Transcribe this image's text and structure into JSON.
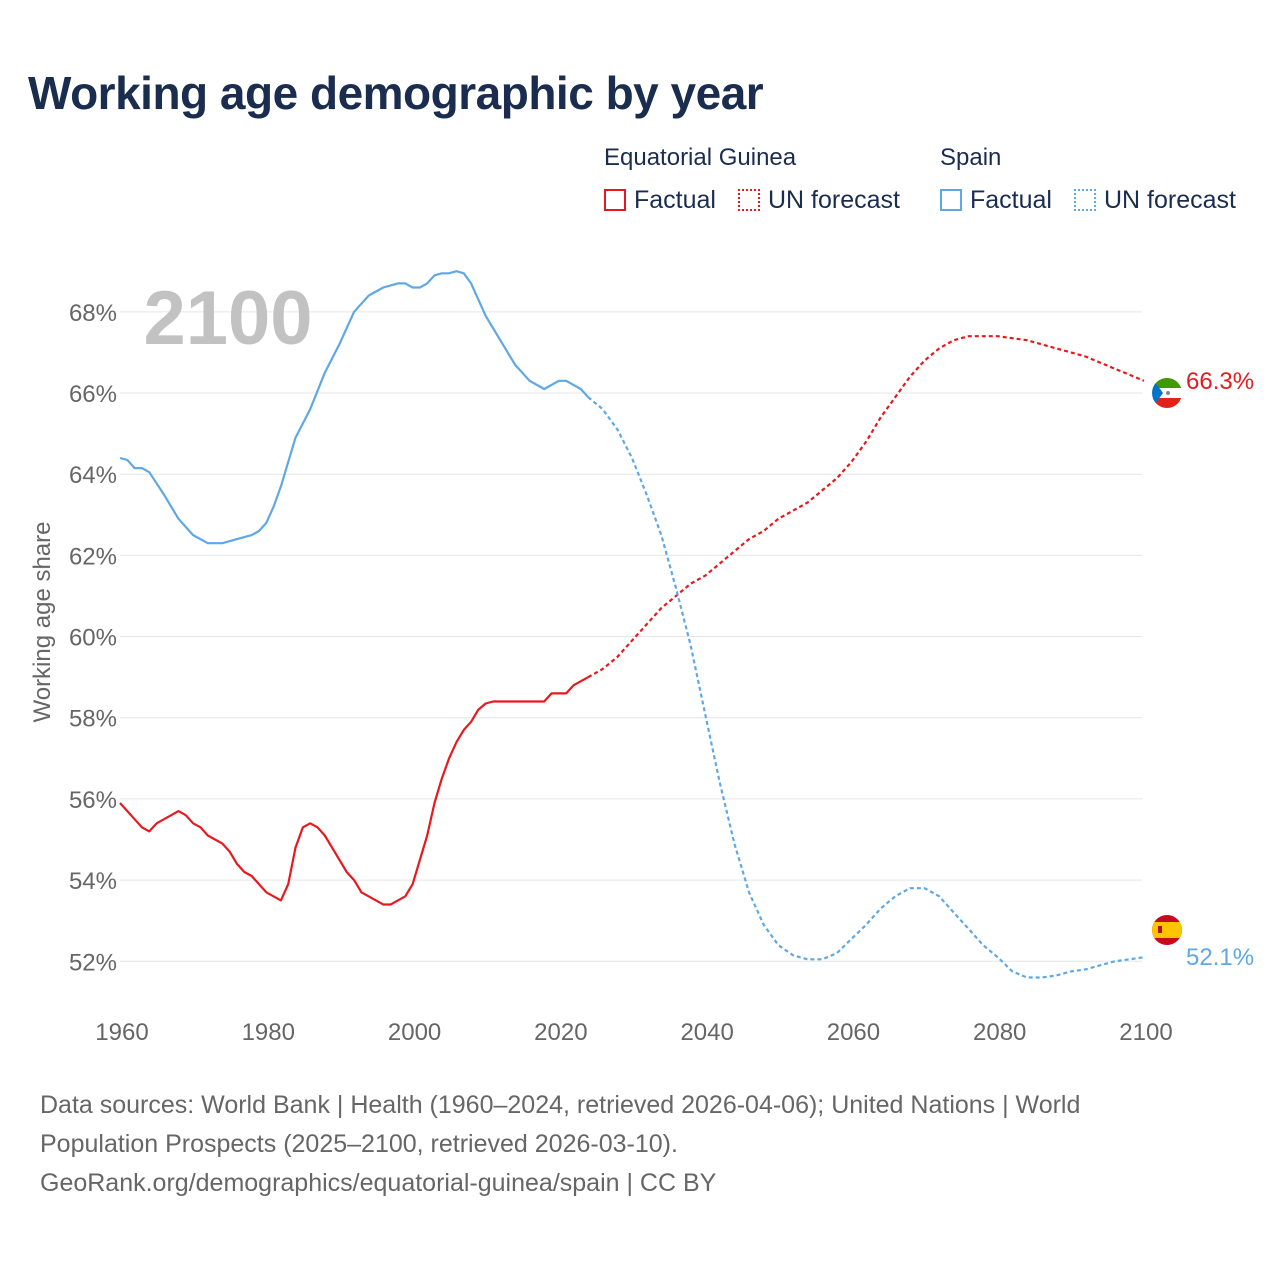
{
  "title": "Working age demographic by year",
  "legend": {
    "groups": [
      {
        "country": "Equatorial Guinea",
        "color": "#e8191e",
        "factual_label": "Factual",
        "forecast_label": "UN forecast"
      },
      {
        "country": "Spain",
        "color": "#5fa8e6",
        "factual_label": "Factual",
        "forecast_label": "UN forecast"
      }
    ]
  },
  "chart_data": {
    "type": "line",
    "title": "Working age demographic by year",
    "xlabel": "",
    "ylabel": "Working age share",
    "xlim": [
      1960,
      2100
    ],
    "ylim": [
      50.8,
      69.4
    ],
    "x_ticks": [
      "1960",
      "1980",
      "2000",
      "2020",
      "2040",
      "2060",
      "2080",
      "2100"
    ],
    "y_ticks": [
      {
        "value": 52,
        "label": "52%"
      },
      {
        "value": 54,
        "label": "54%"
      },
      {
        "value": 56,
        "label": "56%"
      },
      {
        "value": 58,
        "label": "58%"
      },
      {
        "value": 60,
        "label": "60%"
      },
      {
        "value": 62,
        "label": "62%"
      },
      {
        "value": 64,
        "label": "64%"
      },
      {
        "value": 66,
        "label": "66%"
      },
      {
        "value": 68,
        "label": "68%"
      }
    ],
    "year_watermark": "2100",
    "series": [
      {
        "name": "Equatorial Guinea",
        "color": "#e8191e",
        "flag": "equatorial-guinea-flag",
        "end_label": "66.3%",
        "factual": {
          "x": [
            1960,
            1962,
            1963,
            1964,
            1965,
            1967,
            1968,
            1969,
            1970,
            1971,
            1972,
            1974,
            1975,
            1976,
            1977,
            1978,
            1979,
            1980,
            1982,
            1983,
            1984,
            1985,
            1986,
            1987,
            1988,
            1990,
            1991,
            1992,
            1993,
            1995,
            1996,
            1997,
            1998,
            1999,
            2000,
            2001,
            2002,
            2003,
            2004,
            2005,
            2006,
            2007,
            2008,
            2009,
            2010,
            2011,
            2015,
            2018,
            2019,
            2020,
            2021,
            2022,
            2024
          ],
          "values": [
            55.9,
            55.5,
            55.3,
            55.2,
            55.4,
            55.6,
            55.7,
            55.6,
            55.4,
            55.3,
            55.1,
            54.9,
            54.7,
            54.4,
            54.2,
            54.1,
            53.9,
            53.7,
            53.5,
            53.9,
            54.8,
            55.3,
            55.4,
            55.3,
            55.1,
            54.5,
            54.2,
            54.0,
            53.7,
            53.5,
            53.4,
            53.4,
            53.5,
            53.6,
            53.9,
            54.5,
            55.1,
            55.9,
            56.5,
            57.0,
            57.4,
            57.7,
            57.9,
            58.2,
            58.35,
            58.4,
            58.4,
            58.4,
            58.6,
            58.6,
            58.6,
            58.8,
            59.0
          ]
        },
        "forecast": {
          "x": [
            2024,
            2026,
            2028,
            2030,
            2032,
            2034,
            2036,
            2038,
            2040,
            2042,
            2044,
            2046,
            2048,
            2050,
            2052,
            2054,
            2056,
            2058,
            2060,
            2062,
            2064,
            2066,
            2068,
            2070,
            2072,
            2074,
            2076,
            2078,
            2080,
            2082,
            2084,
            2086,
            2088,
            2090,
            2092,
            2094,
            2096,
            2098,
            2100
          ],
          "values": [
            59.0,
            59.2,
            59.5,
            59.9,
            60.3,
            60.7,
            61.0,
            61.3,
            61.5,
            61.8,
            62.1,
            62.4,
            62.6,
            62.9,
            63.1,
            63.3,
            63.6,
            63.9,
            64.3,
            64.8,
            65.4,
            65.9,
            66.4,
            66.8,
            67.1,
            67.3,
            67.4,
            67.4,
            67.4,
            67.35,
            67.3,
            67.2,
            67.1,
            67.0,
            66.9,
            66.75,
            66.6,
            66.45,
            66.3
          ]
        }
      },
      {
        "name": "Spain",
        "color": "#5fa8e6",
        "flag": "spain-flag",
        "end_label": "52.1%",
        "factual": {
          "x": [
            1960,
            1961,
            1962,
            1963,
            1964,
            1966,
            1967,
            1968,
            1969,
            1970,
            1972,
            1974,
            1976,
            1978,
            1979,
            1980,
            1981,
            1982,
            1984,
            1986,
            1988,
            1990,
            1991,
            1992,
            1993,
            1994,
            1995,
            1996,
            1997,
            1998,
            1999,
            2000,
            2001,
            2002,
            2003,
            2004,
            2005,
            2006,
            2007,
            2008,
            2009,
            2010,
            2011,
            2012,
            2014,
            2016,
            2018,
            2019,
            2020,
            2021,
            2022,
            2023,
            2024
          ],
          "values": [
            64.4,
            64.35,
            64.15,
            64.15,
            64.05,
            63.5,
            63.2,
            62.9,
            62.7,
            62.5,
            62.3,
            62.3,
            62.4,
            62.5,
            62.6,
            62.8,
            63.2,
            63.7,
            64.9,
            65.6,
            66.5,
            67.2,
            67.6,
            68.0,
            68.2,
            68.4,
            68.5,
            68.6,
            68.65,
            68.7,
            68.7,
            68.6,
            68.6,
            68.7,
            68.9,
            68.95,
            68.95,
            69.0,
            68.95,
            68.7,
            68.3,
            67.9,
            67.6,
            67.3,
            66.7,
            66.3,
            66.1,
            66.2,
            66.3,
            66.3,
            66.2,
            66.1,
            65.9
          ]
        },
        "forecast": {
          "x": [
            2024,
            2026,
            2028,
            2030,
            2032,
            2034,
            2036,
            2038,
            2040,
            2042,
            2044,
            2046,
            2048,
            2050,
            2052,
            2054,
            2056,
            2058,
            2060,
            2062,
            2064,
            2066,
            2068,
            2070,
            2072,
            2074,
            2076,
            2078,
            2080,
            2082,
            2084,
            2086,
            2088,
            2090,
            2092,
            2094,
            2096,
            2098,
            2100
          ],
          "values": [
            65.9,
            65.6,
            65.1,
            64.4,
            63.5,
            62.5,
            61.2,
            59.8,
            58.1,
            56.4,
            54.9,
            53.7,
            52.9,
            52.4,
            52.15,
            52.05,
            52.05,
            52.2,
            52.55,
            52.9,
            53.3,
            53.6,
            53.8,
            53.8,
            53.6,
            53.2,
            52.8,
            52.4,
            52.1,
            51.75,
            51.6,
            51.6,
            51.65,
            51.75,
            51.8,
            51.9,
            52.0,
            52.05,
            52.1
          ]
        }
      }
    ]
  },
  "footer": {
    "line1": "Data sources: World Bank | Health (1960–2024, retrieved 2026-04-06); United Nations | World",
    "line2": "Population Prospects (2025–2100, retrieved 2026-03-10).",
    "line3": "GeoRank.org/demographics/equatorial-guinea/spain | CC BY"
  }
}
